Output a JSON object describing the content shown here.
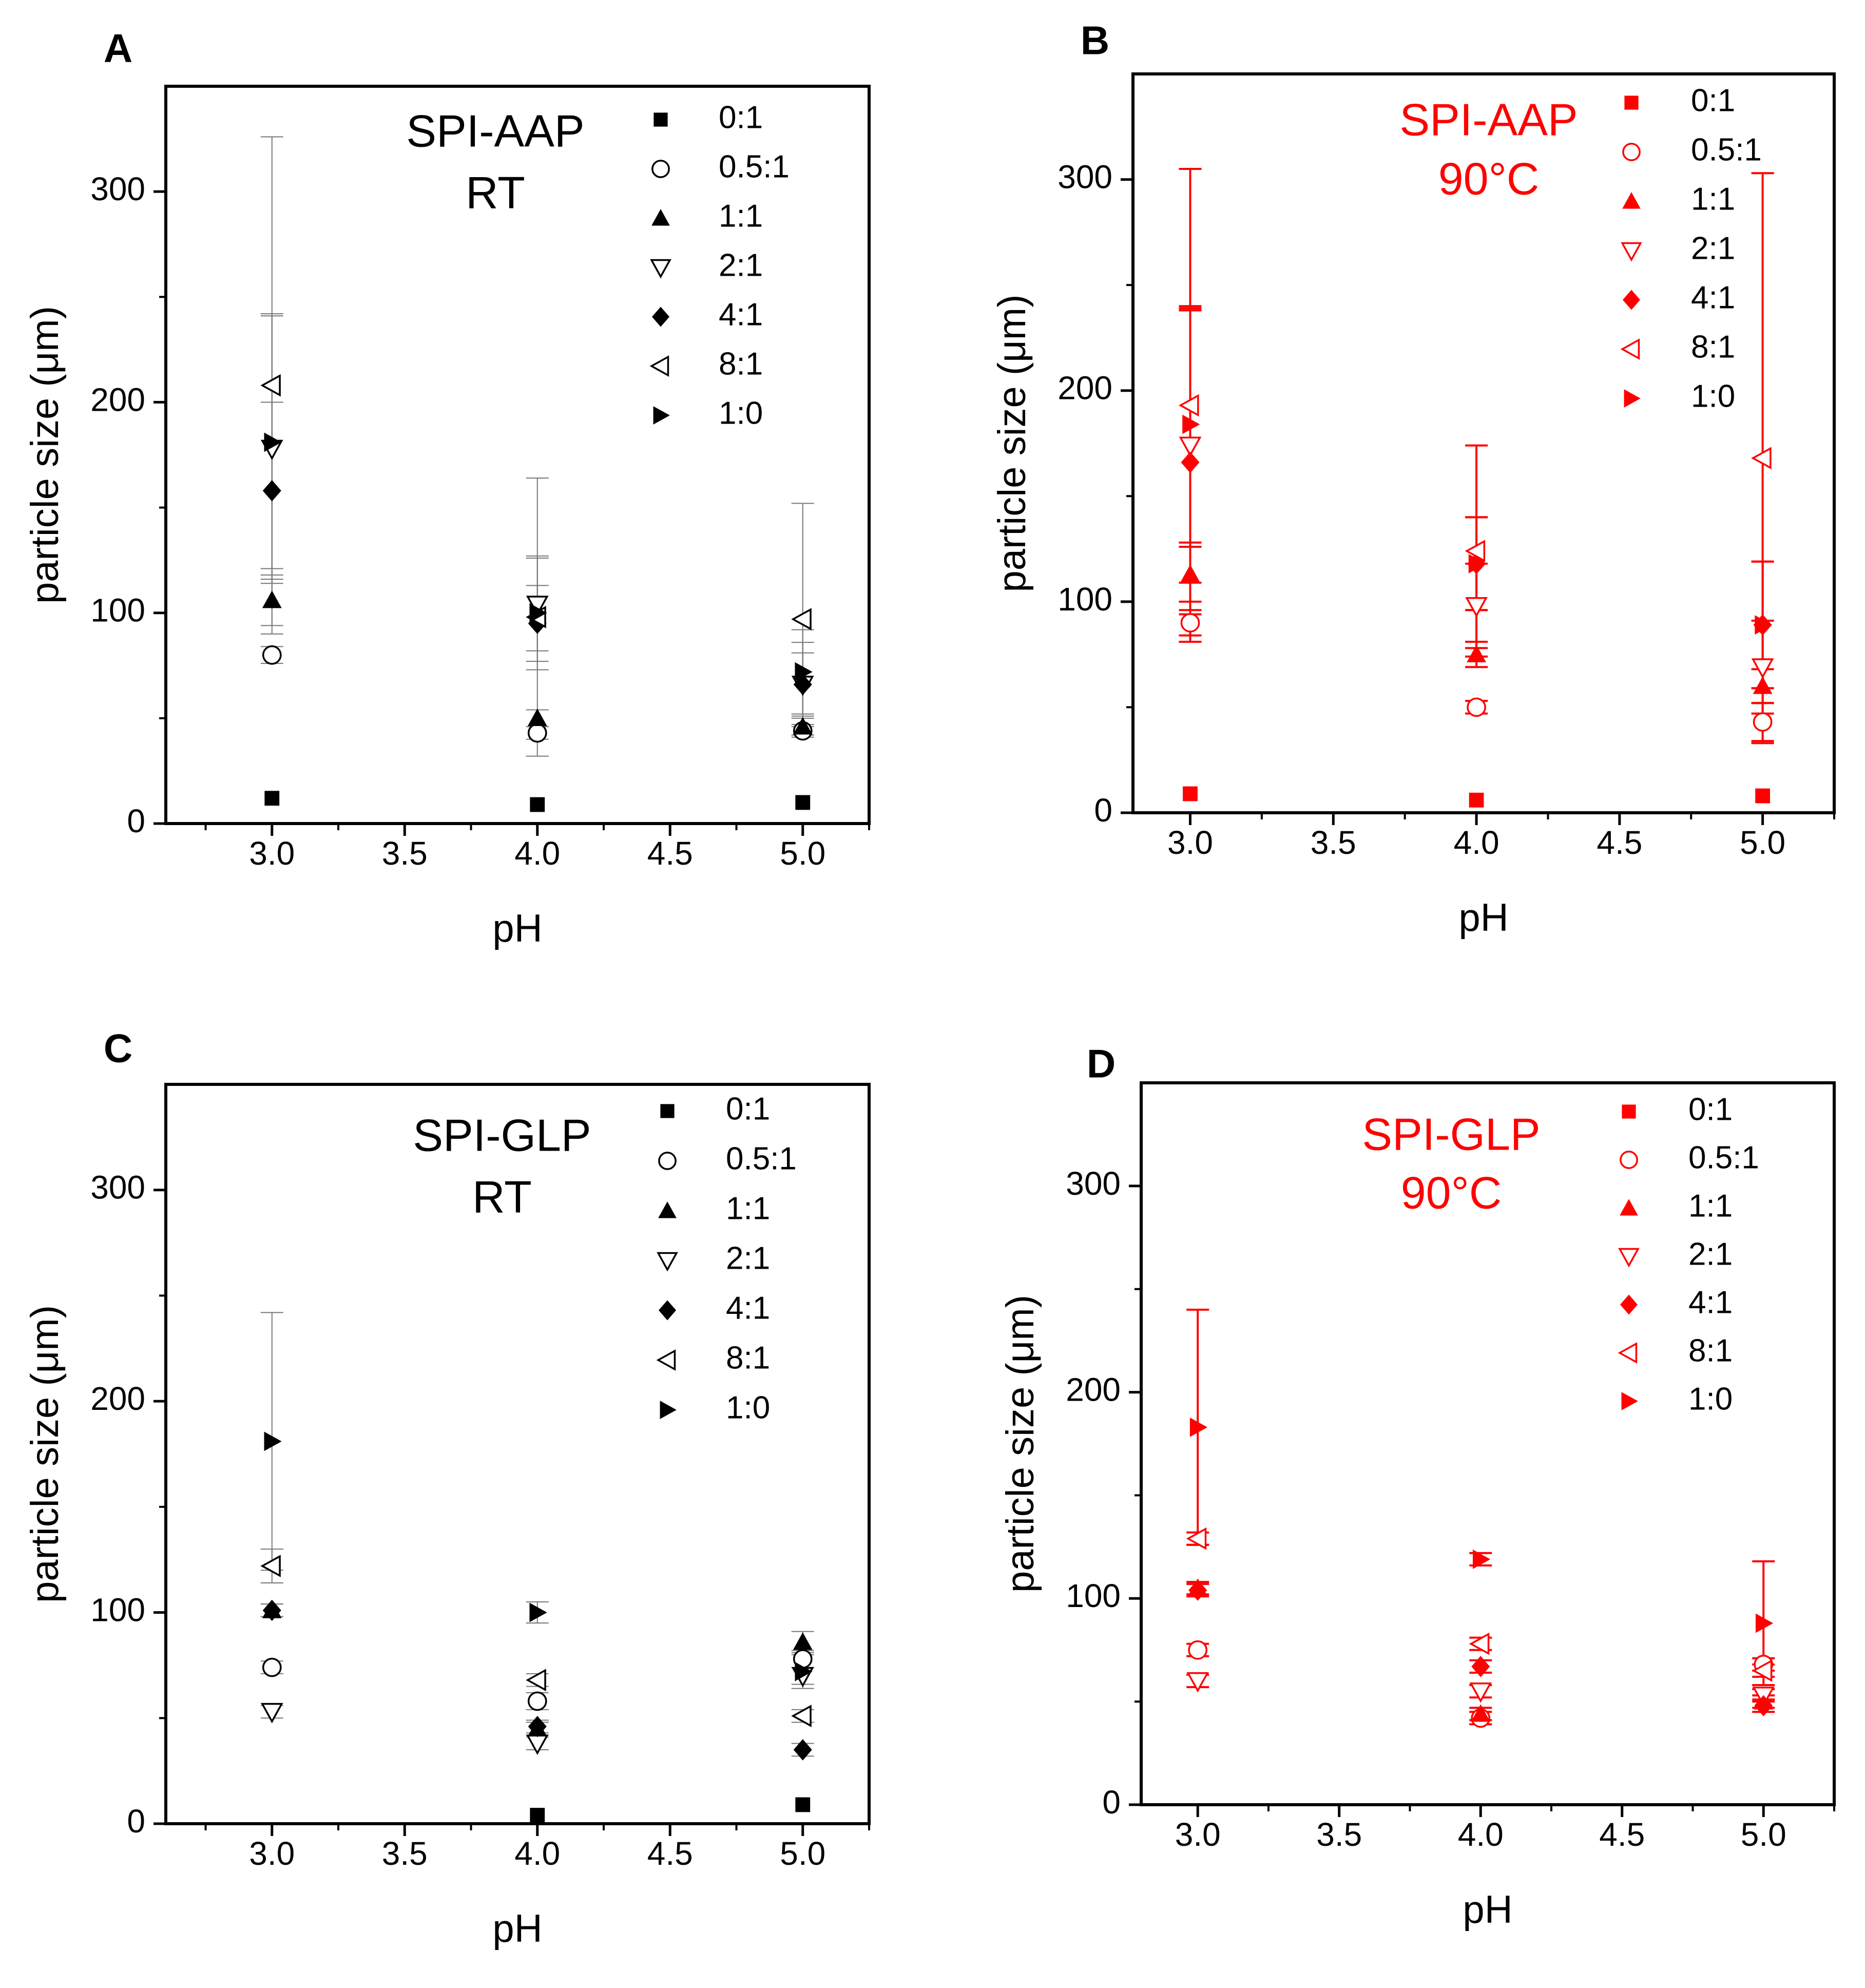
{
  "chart_data": [
    {
      "panel_label": "A",
      "type": "scatter",
      "annotation": [
        "SPI-AAP",
        "RT"
      ],
      "xlabel": "pH",
      "ylabel": "particle size (μm)",
      "xlim": [
        2.6,
        5.25
      ],
      "ylim": [
        0,
        350
      ],
      "xticks": [
        "3.0",
        "3.5",
        "4.0",
        "4.5",
        "5.0"
      ],
      "yticks": [
        "0",
        "100",
        "200",
        "300"
      ],
      "color": "#000000",
      "legend_position": "top-right",
      "x": [
        3.0,
        4.0,
        5.0
      ],
      "series": [
        {
          "name": "0:1",
          "marker": "square-filled",
          "values": [
            12,
            9,
            10
          ],
          "err": [
            0,
            0,
            0
          ]
        },
        {
          "name": "0.5:1",
          "marker": "circle-open",
          "values": [
            80,
            43,
            44
          ],
          "err": [
            4,
            3,
            3
          ]
        },
        {
          "name": "1:1",
          "marker": "triangle-up-filled",
          "values": [
            106,
            50,
            46
          ],
          "err": [
            12,
            4,
            4
          ]
        },
        {
          "name": "2:1",
          "marker": "triangle-down-open",
          "values": [
            178,
            104,
            66
          ],
          "err": [
            64,
            22,
            20
          ]
        },
        {
          "name": "4:1",
          "marker": "diamond-filled",
          "values": [
            158,
            95,
            66
          ],
          "err": [
            42,
            18,
            15
          ]
        },
        {
          "name": "8:1",
          "marker": "triangle-left-open",
          "values": [
            208,
            98,
            97
          ],
          "err": [
            118,
            66,
            55
          ]
        },
        {
          "name": "1:0",
          "marker": "triangle-right-filled",
          "values": [
            181,
            100,
            72
          ],
          "err": [
            60,
            27,
            20
          ]
        }
      ]
    },
    {
      "panel_label": "B",
      "type": "scatter",
      "annotation": [
        "SPI-AAP",
        "90°C"
      ],
      "xlabel": "pH",
      "ylabel": "particle size (μm)",
      "xlim": [
        2.8,
        5.25
      ],
      "ylim": [
        0,
        350
      ],
      "xticks": [
        "3.0",
        "3.5",
        "4.0",
        "4.5",
        "5.0"
      ],
      "yticks": [
        "0",
        "100",
        "200",
        "300"
      ],
      "color": "#ff0000",
      "legend_position": "top-right",
      "x": [
        3.0,
        4.0,
        5.0
      ],
      "series": [
        {
          "name": "0:1",
          "marker": "square-filled",
          "values": [
            9,
            6,
            8
          ],
          "err": [
            0,
            0,
            0
          ]
        },
        {
          "name": "0.5:1",
          "marker": "circle-open",
          "values": [
            90,
            50,
            43
          ],
          "err": [
            6,
            3,
            9
          ]
        },
        {
          "name": "1:1",
          "marker": "triangle-up-filled",
          "values": [
            113,
            75,
            60
          ],
          "err": [
            13,
            6,
            8
          ]
        },
        {
          "name": "2:1",
          "marker": "triangle-down-open",
          "values": [
            174,
            98,
            69
          ],
          "err": [
            65,
            20,
            22
          ]
        },
        {
          "name": "4:1",
          "marker": "diamond-filled",
          "values": [
            166,
            118,
            89
          ],
          "err": [
            72,
            22,
            30
          ]
        },
        {
          "name": "8:1",
          "marker": "triangle-left-open",
          "values": [
            193,
            124,
            168
          ],
          "err": [
            112,
            50,
            135
          ]
        },
        {
          "name": "1:0",
          "marker": "triangle-right-filled",
          "values": [
            184,
            118,
            89
          ],
          "err": [
            56,
            22,
            30
          ]
        }
      ]
    },
    {
      "panel_label": "C",
      "type": "scatter",
      "annotation": [
        "SPI-GLP",
        "RT"
      ],
      "xlabel": "pH",
      "ylabel": "particle size (μm)",
      "xlim": [
        2.6,
        5.25
      ],
      "ylim": [
        0,
        350
      ],
      "xticks": [
        "3.0",
        "3.5",
        "4.0",
        "4.5",
        "5.0"
      ],
      "yticks": [
        "0",
        "100",
        "200",
        "300"
      ],
      "color": "#000000",
      "legend_position": "top-right",
      "x": [
        3.0,
        4.0,
        5.0
      ],
      "series": [
        {
          "name": "0:1",
          "marker": "square-filled",
          "values": [
            null,
            4,
            9
          ],
          "err": [
            0,
            0,
            0
          ]
        },
        {
          "name": "0.5:1",
          "marker": "circle-open",
          "values": [
            74,
            58,
            78
          ],
          "err": [
            3,
            4,
            4
          ]
        },
        {
          "name": "1:1",
          "marker": "triangle-up-filled",
          "values": [
            101,
            45,
            86
          ],
          "err": [
            3,
            3,
            5
          ]
        },
        {
          "name": "2:1",
          "marker": "triangle-down-open",
          "values": [
            53,
            38,
            70
          ],
          "err": [
            3,
            3,
            4
          ]
        },
        {
          "name": "4:1",
          "marker": "diamond-filled",
          "values": [
            101,
            46,
            35
          ],
          "err": [
            3,
            3,
            3
          ]
        },
        {
          "name": "8:1",
          "marker": "triangle-left-open",
          "values": [
            122,
            68,
            51
          ],
          "err": [
            8,
            3,
            3
          ]
        },
        {
          "name": "1:0",
          "marker": "triangle-right-filled",
          "values": [
            181,
            100,
            72
          ],
          "err": [
            61,
            5,
            8
          ]
        }
      ]
    },
    {
      "panel_label": "D",
      "type": "scatter",
      "annotation": [
        "SPI-GLP",
        "90°C"
      ],
      "xlabel": "pH",
      "ylabel": "particle size (μm)",
      "xlim": [
        2.8,
        5.25
      ],
      "ylim": [
        0,
        350
      ],
      "xticks": [
        "3.0",
        "3.5",
        "4.0",
        "4.5",
        "5.0"
      ],
      "yticks": [
        "0",
        "100",
        "200",
        "300"
      ],
      "color": "#ff0000",
      "legend_position": "top-right",
      "x": [
        3.0,
        4.0,
        5.0
      ],
      "series": [
        {
          "name": "0:1",
          "marker": "square-filled",
          "values": [
            null,
            null,
            null
          ],
          "err": [
            0,
            0,
            0
          ]
        },
        {
          "name": "0.5:1",
          "marker": "circle-open",
          "values": [
            75,
            42,
            68
          ],
          "err": [
            3,
            3,
            3
          ]
        },
        {
          "name": "1:1",
          "marker": "triangle-up-filled",
          "values": [
            105,
            44,
            50
          ],
          "err": [
            3,
            3,
            3
          ]
        },
        {
          "name": "2:1",
          "marker": "triangle-down-open",
          "values": [
            60,
            55,
            53
          ],
          "err": [
            3,
            3,
            3
          ]
        },
        {
          "name": "4:1",
          "marker": "diamond-filled",
          "values": [
            104,
            67,
            48
          ],
          "err": [
            3,
            3,
            3
          ]
        },
        {
          "name": "8:1",
          "marker": "triangle-left-open",
          "values": [
            129,
            78,
            65
          ],
          "err": [
            3,
            3,
            3
          ]
        },
        {
          "name": "1:0",
          "marker": "triangle-right-filled",
          "values": [
            183,
            119,
            88
          ],
          "err": [
            57,
            3,
            30
          ]
        }
      ]
    }
  ]
}
